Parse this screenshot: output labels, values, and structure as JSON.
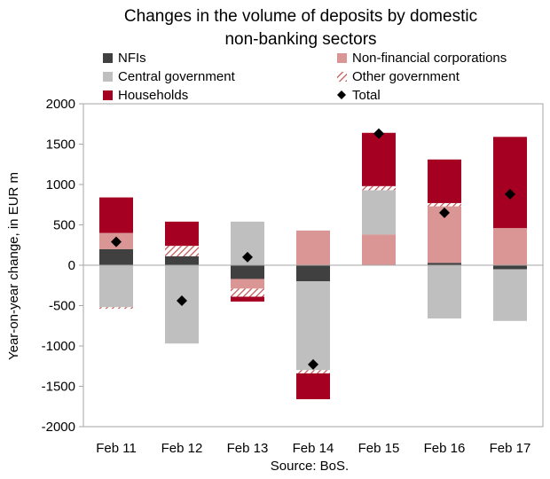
{
  "chart_data": {
    "type": "bar",
    "stacked": true,
    "title_line1": "Changes in the volume of deposits by domestic",
    "title_line2": "non-banking sectors",
    "ylabel": "Year-on-year change, in EUR m",
    "xlabel": "",
    "source": "Source: BoS.",
    "ylim": [
      -2000,
      2000
    ],
    "yticks": [
      -2000,
      -1500,
      -1000,
      -500,
      0,
      500,
      1000,
      1500,
      2000
    ],
    "yticklabels": [
      "-2000",
      "-1500",
      "-1000",
      "-500",
      "0",
      "500",
      "1000",
      "1500",
      "2000"
    ],
    "categories": [
      "Feb 11",
      "Feb 12",
      "Feb 13",
      "Feb 14",
      "Feb 15",
      "Feb 16",
      "Feb 17"
    ],
    "legend_position": "top",
    "series": [
      {
        "name": "NFIs",
        "color": "#404040",
        "pattern": "solid",
        "values": [
          200,
          110,
          -170,
          -200,
          0,
          30,
          -50
        ]
      },
      {
        "name": "Non-financial corporations",
        "color": "#da9694",
        "pattern": "solid",
        "values": [
          200,
          0,
          -120,
          430,
          380,
          700,
          460
        ]
      },
      {
        "name": "Central government",
        "color": "#bfbfbf",
        "pattern": "solid",
        "values": [
          -520,
          -970,
          540,
          -1100,
          550,
          -660,
          -640
        ]
      },
      {
        "name": "Other government",
        "color": "#c0504d",
        "pattern": "hatched",
        "values": [
          -20,
          130,
          -100,
          -40,
          50,
          40,
          0
        ]
      },
      {
        "name": "Households",
        "color": "#a50021",
        "pattern": "solid",
        "values": [
          440,
          300,
          -60,
          -320,
          660,
          540,
          1130
        ]
      },
      {
        "name": "Total",
        "color": "#000000",
        "pattern": "diamond-marker",
        "values": [
          290,
          -440,
          100,
          -1230,
          1630,
          650,
          880
        ]
      }
    ],
    "grid": false
  }
}
